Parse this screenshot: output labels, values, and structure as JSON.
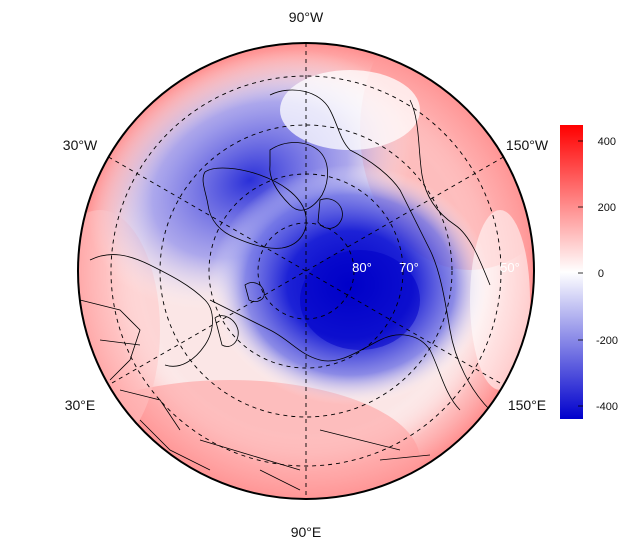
{
  "map": {
    "longitude_labels": {
      "top": "90°W",
      "bottom": "90°E",
      "upper_left": "30°W",
      "lower_left": "30°E",
      "upper_right": "150°W",
      "lower_right": "150°E"
    },
    "latitude_labels": [
      "80°",
      "70°",
      "50°"
    ]
  },
  "colorbar": {
    "ticks": [
      "400",
      "200",
      "0",
      "-200",
      "-400"
    ],
    "colors": {
      "max": "#ff0000",
      "mid": "#ffffff",
      "min": "#0000cc"
    }
  }
}
